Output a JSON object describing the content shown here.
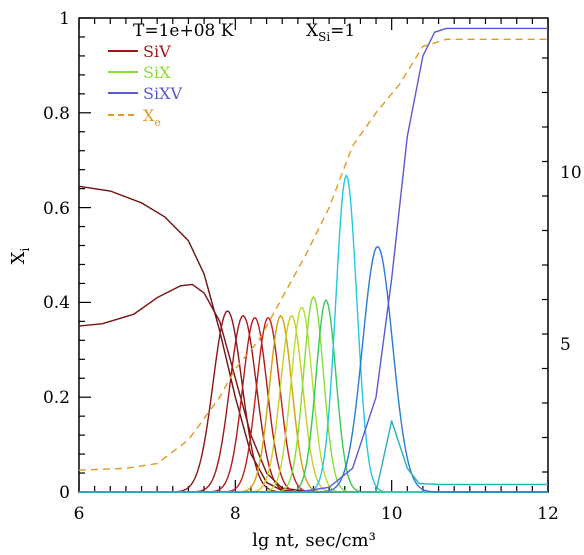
{
  "chart_data": {
    "type": "line",
    "xlabel": "lg nt, sec/cm³",
    "ylabel_main": "X",
    "ylabel_sub": "i",
    "xlim": [
      6,
      12
    ],
    "ylim": [
      0,
      1
    ],
    "x_ticks": [
      "6",
      "8",
      "10",
      "12"
    ],
    "y_ticks": [
      "0",
      "0.2",
      "0.4",
      "0.6",
      "0.8",
      "1"
    ],
    "right_axis_tick_labels": [
      "10",
      "5"
    ],
    "annotation_temperature": "T=1e+08 K",
    "annotation_abundance_main": "X",
    "annotation_abundance_sub": "Si",
    "annotation_abundance_value": "=1",
    "legend": [
      {
        "label": "SiV",
        "sub": "",
        "color": "#a01818",
        "dashed": false
      },
      {
        "label": "SiX",
        "sub": "",
        "color": "#88dd33",
        "dashed": false
      },
      {
        "label": "SiXV",
        "sub": "",
        "color": "#5a5ad0",
        "dashed": false
      },
      {
        "label": "X",
        "sub": "e",
        "color": "#e09a20",
        "dashed": true
      }
    ],
    "series": [
      {
        "color": "#6e1010",
        "values": [
          [
            6.0,
            0.645
          ],
          [
            6.4,
            0.635
          ],
          [
            6.8,
            0.61
          ],
          [
            7.1,
            0.58
          ],
          [
            7.4,
            0.53
          ],
          [
            7.6,
            0.46
          ],
          [
            7.8,
            0.34
          ],
          [
            8.0,
            0.2
          ],
          [
            8.2,
            0.08
          ],
          [
            8.4,
            0.02
          ],
          [
            8.6,
            0.003
          ],
          [
            9.0,
            0.0
          ],
          [
            12.0,
            0.0
          ]
        ]
      },
      {
        "color": "#7a1212",
        "values": [
          [
            6.0,
            0.35
          ],
          [
            6.3,
            0.355
          ],
          [
            6.7,
            0.375
          ],
          [
            7.0,
            0.41
          ],
          [
            7.3,
            0.435
          ],
          [
            7.45,
            0.438
          ],
          [
            7.6,
            0.42
          ],
          [
            7.8,
            0.36
          ],
          [
            8.0,
            0.24
          ],
          [
            8.2,
            0.12
          ],
          [
            8.4,
            0.04
          ],
          [
            8.6,
            0.008
          ],
          [
            9.0,
            0.0
          ],
          [
            12.0,
            0.0
          ]
        ]
      },
      {
        "color": "#8a1515",
        "center": 7.9,
        "peak": 0.382,
        "width": 0.26
      },
      {
        "color": "#a01818",
        "center": 8.1,
        "peak": 0.372,
        "width": 0.24
      },
      {
        "color": "#b01c1c",
        "center": 8.25,
        "peak": 0.368,
        "width": 0.22
      },
      {
        "color": "#c41e1e",
        "center": 8.42,
        "peak": 0.368,
        "width": 0.21
      },
      {
        "color": "#d4a00a",
        "center": 8.58,
        "peak": 0.372,
        "width": 0.2
      },
      {
        "color": "#cccc22",
        "center": 8.72,
        "peak": 0.372,
        "width": 0.2
      },
      {
        "color": "#b6e030",
        "center": 8.85,
        "peak": 0.39,
        "width": 0.19
      },
      {
        "color": "#88dd33",
        "center": 9.0,
        "peak": 0.412,
        "width": 0.18
      },
      {
        "color": "#33cc55",
        "center": 9.16,
        "peak": 0.405,
        "width": 0.18
      },
      {
        "color": "#22c8e0",
        "center": 9.42,
        "peak": 0.668,
        "width": 0.19
      },
      {
        "color": "#2a7ad6",
        "center": 9.82,
        "peak": 0.518,
        "width": 0.27
      },
      {
        "color": "#5a5ad0",
        "values": [
          [
            6.0,
            0.0
          ],
          [
            8.8,
            0.0
          ],
          [
            9.2,
            0.01
          ],
          [
            9.5,
            0.05
          ],
          [
            9.8,
            0.2
          ],
          [
            10.0,
            0.45
          ],
          [
            10.2,
            0.75
          ],
          [
            10.4,
            0.92
          ],
          [
            10.55,
            0.97
          ],
          [
            10.7,
            0.978
          ],
          [
            12.0,
            0.978
          ]
        ]
      },
      {
        "color": "#28b0b8",
        "values": [
          [
            6.0,
            0.0
          ],
          [
            9.8,
            0.0
          ],
          [
            10.0,
            0.15
          ],
          [
            10.2,
            0.05
          ],
          [
            10.35,
            0.018
          ],
          [
            10.6,
            0.016
          ],
          [
            12.0,
            0.016
          ]
        ]
      },
      {
        "color": "#e09a20",
        "dashed": true,
        "values": [
          [
            6.0,
            0.046
          ],
          [
            6.6,
            0.05
          ],
          [
            7.0,
            0.06
          ],
          [
            7.4,
            0.11
          ],
          [
            7.8,
            0.2
          ],
          [
            8.0,
            0.26
          ],
          [
            8.3,
            0.32
          ],
          [
            8.6,
            0.41
          ],
          [
            8.9,
            0.5
          ],
          [
            9.2,
            0.6
          ],
          [
            9.5,
            0.73
          ],
          [
            9.8,
            0.8
          ],
          [
            10.1,
            0.86
          ],
          [
            10.4,
            0.94
          ],
          [
            10.7,
            0.955
          ],
          [
            12.0,
            0.955
          ]
        ]
      }
    ]
  }
}
